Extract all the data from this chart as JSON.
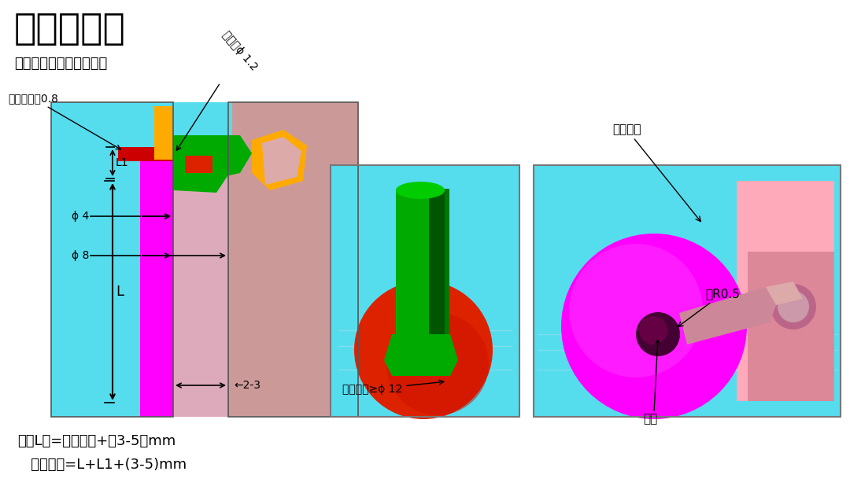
{
  "title": "牛角潜骨位",
  "subtitle": "牛角潜骨位形式结构如下",
  "note_line1": "注：L值=牛角线长+（3-5）mm",
  "note_line2": "   顶针行程=L+L1+(3-5)mm",
  "label_thickness": "吸盘片厚度0.8",
  "label_gate": "进胶口ϕ 1.2",
  "label_phi4": "ϕ 4",
  "label_phi8": "ϕ 8",
  "label_L1": "L1",
  "label_L": "L",
  "label_2_3": "←2-3",
  "label_sucker": "吸盘范围≥ϕ 12",
  "label_fold": "利于折弯",
  "label_stop": "止转",
  "label_chamfer": "倒R0.5",
  "bg_color": "#ffffff",
  "cyan_color": "#55ddee",
  "magenta_color": "#ff00ff",
  "pink_mold": "#cc9999",
  "red_color": "#dd2200",
  "green_dark": "#007700",
  "green_mid": "#00aa00",
  "orange_color": "#ffaa00"
}
